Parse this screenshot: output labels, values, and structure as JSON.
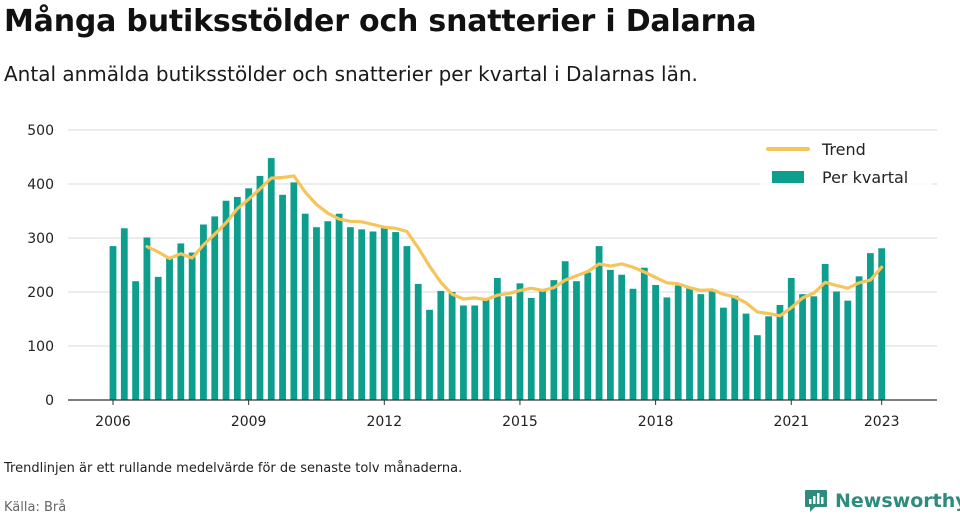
{
  "title": "Många butiksstölder och snatterier i Dalarna",
  "subtitle": "Antal anmälda butiksstölder och snatterier per kvartal i Dalarnas län.",
  "note": "Trendlinjen är ett rullande medelvärde för de senaste tolv månaderna.",
  "source": "Källa: Brå",
  "logo_text": "Newsworthy",
  "colors": {
    "bars": "#0e9e8e",
    "trend": "#f5c45a",
    "grid": "#d9d9d9",
    "logo": "#2e8b7e"
  },
  "chart_data": {
    "type": "bar",
    "title": "",
    "xlabel": "",
    "ylabel": "",
    "ylim": [
      0,
      500
    ],
    "yticks": [
      0,
      100,
      200,
      300,
      400,
      500
    ],
    "xticks": [
      2006,
      2009,
      2012,
      2015,
      2018,
      2021,
      2023
    ],
    "legend_position": "top-right",
    "grid": true,
    "categories": [
      "2006 Q1",
      "2006 Q2",
      "2006 Q3",
      "2006 Q4",
      "2007 Q1",
      "2007 Q2",
      "2007 Q3",
      "2007 Q4",
      "2008 Q1",
      "2008 Q2",
      "2008 Q3",
      "2008 Q4",
      "2009 Q1",
      "2009 Q2",
      "2009 Q3",
      "2009 Q4",
      "2010 Q1",
      "2010 Q2",
      "2010 Q3",
      "2010 Q4",
      "2011 Q1",
      "2011 Q2",
      "2011 Q3",
      "2011 Q4",
      "2012 Q1",
      "2012 Q2",
      "2012 Q3",
      "2012 Q4",
      "2013 Q1",
      "2013 Q2",
      "2013 Q3",
      "2013 Q4",
      "2014 Q1",
      "2014 Q2",
      "2014 Q3",
      "2014 Q4",
      "2015 Q1",
      "2015 Q2",
      "2015 Q3",
      "2015 Q4",
      "2016 Q1",
      "2016 Q2",
      "2016 Q3",
      "2016 Q4",
      "2017 Q1",
      "2017 Q2",
      "2017 Q3",
      "2017 Q4",
      "2018 Q1",
      "2018 Q2",
      "2018 Q3",
      "2018 Q4",
      "2019 Q1",
      "2019 Q2",
      "2019 Q3",
      "2019 Q4",
      "2020 Q1",
      "2020 Q2",
      "2020 Q3",
      "2020 Q4",
      "2021 Q1",
      "2021 Q2",
      "2021 Q3",
      "2021 Q4",
      "2022 Q1",
      "2022 Q2",
      "2022 Q3",
      "2022 Q4",
      "2023 Q1",
      "2023 Q2"
    ],
    "series": [
      {
        "name": "Per kvartal",
        "type": "bar",
        "values": [
          285,
          318,
          220,
          301,
          228,
          262,
          290,
          273,
          325,
          340,
          369,
          376,
          392,
          415,
          448,
          380,
          403,
          345,
          320,
          331,
          345,
          320,
          316,
          312,
          320,
          311,
          285,
          215,
          167,
          202,
          200,
          175,
          175,
          187,
          226,
          192,
          216,
          189,
          205,
          222,
          257,
          220,
          236,
          285,
          241,
          232,
          206,
          245,
          213,
          190,
          212,
          207,
          196,
          202,
          171,
          193,
          160,
          120,
          155,
          176,
          226,
          196,
          192,
          252,
          201,
          184,
          229,
          272,
          281,
          null
        ]
      },
      {
        "name": "Trend",
        "type": "line",
        "values": [
          null,
          null,
          null,
          284,
          274,
          262,
          271,
          263,
          287,
          307,
          328,
          354,
          372,
          391,
          411,
          412,
          415,
          385,
          362,
          346,
          335,
          331,
          330,
          325,
          320,
          318,
          312,
          282,
          248,
          218,
          196,
          187,
          189,
          186,
          194,
          197,
          203,
          207,
          203,
          208,
          222,
          230,
          238,
          252,
          248,
          252,
          246,
          237,
          227,
          217,
          215,
          208,
          203,
          204,
          196,
          191,
          180,
          163,
          160,
          156,
          171,
          189,
          198,
          218,
          212,
          207,
          217,
          222,
          246,
          null
        ]
      }
    ]
  }
}
